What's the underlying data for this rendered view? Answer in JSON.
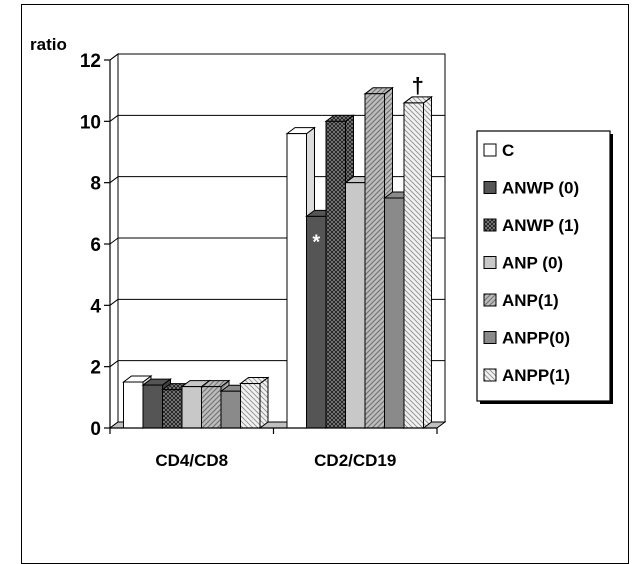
{
  "chart_data": {
    "type": "bar",
    "ylabel": "ratio",
    "ylim": [
      0,
      12
    ],
    "yticks": [
      0,
      2,
      4,
      6,
      8,
      10,
      12
    ],
    "grid": true,
    "legend_position": "right",
    "categories": [
      "CD4/CD8",
      "CD2/CD19"
    ],
    "series": [
      {
        "name": "C",
        "values": [
          1.5,
          9.6
        ],
        "pattern": "white",
        "color": "#ffffff"
      },
      {
        "name": "ANWP (0)",
        "values": [
          1.4,
          6.9
        ],
        "pattern": "dark",
        "color": "#555555"
      },
      {
        "name": "ANWP (1)",
        "values": [
          1.25,
          10.0
        ],
        "pattern": "crosshatch",
        "color": "#6e6e6e"
      },
      {
        "name": "ANP (0)",
        "values": [
          1.35,
          8.0
        ],
        "pattern": "light",
        "color": "#c8c8c8"
      },
      {
        "name": "ANP(1)",
        "values": [
          1.35,
          10.9
        ],
        "pattern": "diagonal",
        "color": "#a8a8a8"
      },
      {
        "name": "ANPP(0)",
        "values": [
          1.2,
          7.5
        ],
        "pattern": "medium",
        "color": "#8a8a8a"
      },
      {
        "name": "ANPP(1)",
        "values": [
          1.45,
          10.6
        ],
        "pattern": "lightdiag",
        "color": "#e0e0e0"
      }
    ],
    "annotations": [
      {
        "text": "*",
        "category": "CD2/CD19",
        "series": "ANWP (0)"
      },
      {
        "text": "†",
        "category": "CD2/CD19",
        "series": "ANPP(1)"
      }
    ]
  }
}
